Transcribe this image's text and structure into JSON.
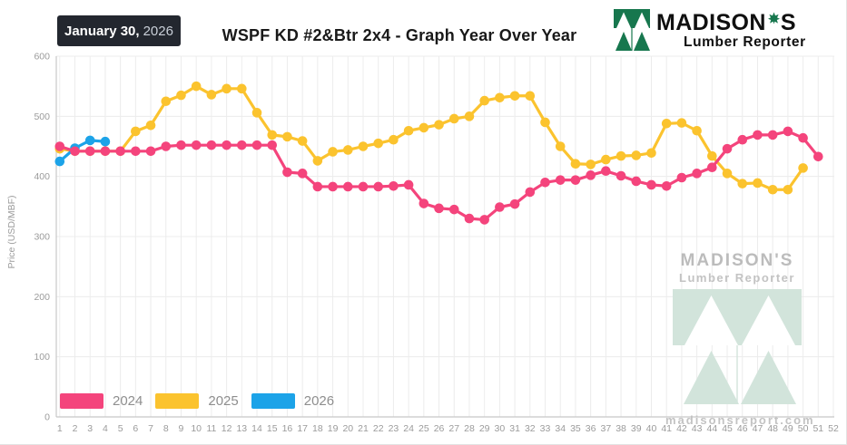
{
  "header": {
    "date": "January 30,",
    "year": "2026",
    "brand_left": "MADISON",
    "brand_right": "S",
    "brand_subtitle": "Lumber Reporter"
  },
  "watermark": {
    "name": "MADISON'S",
    "subtitle": "Lumber Reporter",
    "site": "madisonsreport.com"
  },
  "chart_data": {
    "type": "line",
    "title": "WSPF KD #2&Btr 2x4 - Graph Year Over Year",
    "xlabel": "",
    "ylabel": "Price (USD/MBF)",
    "ylim": [
      0,
      600
    ],
    "y_ticks": [
      0,
      100,
      200,
      300,
      400,
      500,
      600
    ],
    "x_start": 1,
    "x_end": 52,
    "x_unit": "week",
    "grid": true,
    "legend_position": "bottom-left",
    "series": [
      {
        "name": "2024",
        "color": "#F4447C",
        "values": [
          450,
          442,
          442,
          442,
          442,
          442,
          442,
          450,
          452,
          452,
          452,
          452,
          452,
          452,
          452,
          407,
          405,
          383,
          383,
          383,
          383,
          383,
          384,
          386,
          355,
          347,
          345,
          330,
          328,
          349,
          354,
          374,
          390,
          394,
          394,
          402,
          409,
          401,
          392,
          386,
          384,
          398,
          405,
          415,
          446,
          461,
          469,
          469,
          475,
          464,
          433
        ]
      },
      {
        "name": "2025",
        "color": "#FBC32E",
        "values": [
          446,
          442,
          442,
          442,
          442,
          475,
          485,
          525,
          535,
          550,
          536,
          546,
          546,
          506,
          469,
          466,
          459,
          426,
          441,
          444,
          450,
          455,
          461,
          476,
          481,
          486,
          496,
          500,
          526,
          531,
          534,
          534,
          490,
          450,
          421,
          420,
          428,
          434,
          435,
          439,
          488,
          489,
          476,
          434,
          405,
          388,
          389,
          378,
          378,
          414
        ]
      },
      {
        "name": "2026",
        "color": "#1CA3E8",
        "values": [
          425,
          447,
          460,
          458
        ]
      }
    ]
  }
}
